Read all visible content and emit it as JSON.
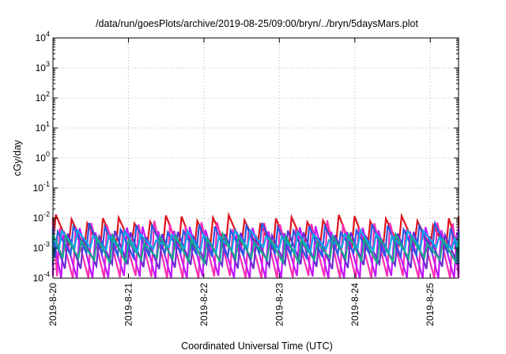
{
  "chart_data": {
    "type": "line",
    "title": "/data/run/goesPlots/archive/2019-08-25/09:00/bryn/../bryn/5daysMars.plot",
    "xlabel": "Coordinated Universal Time (UTC)",
    "ylabel": "cGy/day",
    "yscale": "log",
    "ylim": [
      0.0001,
      10000
    ],
    "xlim": [
      "2019-08-20T00:00",
      "2019-08-25T09:00"
    ],
    "x_tick_labels": [
      "2019-8-20",
      "2019-8-21",
      "2019-8-22",
      "2019-8-23",
      "2019-8-24",
      "2019-8-25"
    ],
    "y_tick_labels": [
      {
        "base": "10",
        "exp": "-4",
        "value": 0.0001
      },
      {
        "base": "10",
        "exp": "-3",
        "value": 0.001
      },
      {
        "base": "10",
        "exp": "-2",
        "value": 0.01
      },
      {
        "base": "10",
        "exp": "-1",
        "value": 0.1
      },
      {
        "base": "10",
        "exp": "0",
        "value": 1
      },
      {
        "base": "10",
        "exp": "1",
        "value": 10
      },
      {
        "base": "10",
        "exp": "2",
        "value": 100
      },
      {
        "base": "10",
        "exp": "3",
        "value": 1000
      },
      {
        "base": "10",
        "exp": "4",
        "value": 10000
      }
    ],
    "grid": true,
    "legend": "none",
    "cycle_hours": 5,
    "series": [
      {
        "color": "#e0141e",
        "peak": 0.0095,
        "trough": 0.0011,
        "phase_hours": 0.0
      },
      {
        "color": "#ff2db4",
        "peak": 0.006,
        "trough": 0.0001,
        "phase_hours": 1.3
      },
      {
        "color": "#c018ff",
        "peak": 0.004,
        "trough": 0.0001,
        "phase_hours": 2.6
      },
      {
        "color": "#6a2bd0",
        "peak": 0.0028,
        "trough": 0.00025,
        "phase_hours": 3.8
      },
      {
        "color": "#2a58e0",
        "peak": 0.005,
        "trough": 0.0006,
        "phase_hours": 0.6
      },
      {
        "color": "#0aa8e8",
        "peak": 0.003,
        "trough": 0.0009,
        "phase_hours": 1.9
      },
      {
        "color": "#14a88a",
        "peak": 0.0022,
        "trough": 0.0004,
        "phase_hours": 3.1
      }
    ]
  }
}
